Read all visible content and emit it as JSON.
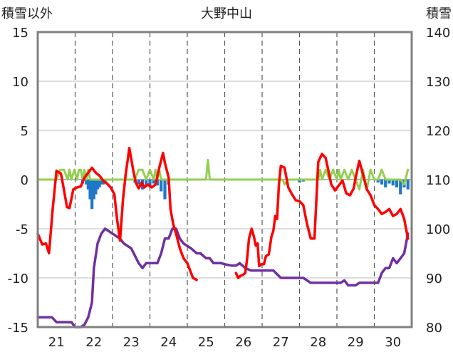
{
  "chart_data": {
    "type": "line",
    "title": "大野中山",
    "ylabel_left": "積雪以外",
    "ylabel_right": "積雪",
    "ylim_left": [
      -15,
      15
    ],
    "ylim_right": [
      80,
      140
    ],
    "yticks_left": [
      "15",
      "10",
      "5",
      "0",
      "-5",
      "-10",
      "-15"
    ],
    "yticks_right": [
      "140",
      "130",
      "120",
      "110",
      "100",
      "90",
      "80"
    ],
    "xlim": [
      20.5,
      30.5
    ],
    "day_labels": [
      "21",
      "22",
      "23",
      "24",
      "25",
      "26",
      "27",
      "28",
      "29",
      "30"
    ],
    "grid": true,
    "legend": "none",
    "colors": {
      "temperature": "#ff0000",
      "snow_depth": "#7030a0",
      "wind": "#92d050",
      "precip": "#1f77c8",
      "frame": "#808080"
    },
    "series": [
      {
        "axis": "left",
        "x": [
          20.5,
          20.62,
          20.72,
          20.8,
          20.9,
          21.0,
          21.12,
          21.2,
          21.28,
          21.35,
          21.45,
          21.55,
          21.65,
          21.75,
          21.85,
          21.95,
          22.05,
          22.15,
          22.25,
          22.35,
          22.45,
          22.55,
          22.62,
          22.7,
          22.78,
          22.85,
          22.95,
          23.05,
          23.12,
          23.2,
          23.28,
          23.35,
          23.45,
          23.55,
          23.65,
          23.75,
          23.85,
          23.9,
          24.0,
          24.05,
          24.12,
          24.2,
          24.3,
          24.4,
          24.5,
          24.6,
          24.65,
          24.75
        ],
        "y": [
          -5.5,
          -6.6,
          -6.5,
          -7.5,
          -3.0,
          0.9,
          0.6,
          -1.0,
          -2.8,
          -2.9,
          -1.0,
          -0.8,
          -0.7,
          0.2,
          0.7,
          1.2,
          0.7,
          0.4,
          -0.1,
          -0.4,
          -0.8,
          -1.5,
          -4.0,
          -6.2,
          -2.0,
          0.5,
          3.2,
          1.0,
          -0.3,
          -0.9,
          -0.3,
          -0.8,
          -0.5,
          -0.8,
          -0.5,
          1.2,
          2.7,
          1.7,
          0.2,
          -3.0,
          -4.5,
          -5.5,
          -7.0,
          -8.0,
          -8.5,
          -9.5,
          -10.0,
          -10.2
        ]
      },
      {
        "axis": "left",
        "x": [
          25.8,
          25.86,
          25.92,
          25.98,
          26.05,
          26.1,
          26.15,
          26.22,
          26.28,
          26.33,
          26.38,
          26.42,
          26.48,
          26.55,
          26.6,
          26.68,
          26.75,
          26.8,
          26.85,
          26.9,
          26.95,
          27.0,
          27.1,
          27.2,
          27.3,
          27.4,
          27.5,
          27.6,
          27.7,
          27.8,
          27.9,
          28.0,
          28.1,
          28.2,
          28.3,
          28.35,
          28.45,
          28.55,
          28.65,
          28.75,
          28.85,
          28.95,
          29.0,
          29.1,
          29.2,
          29.3,
          29.4,
          29.5,
          29.6,
          29.7,
          29.8,
          29.9,
          30.0,
          30.1,
          30.2,
          30.3,
          30.4
        ],
        "y": [
          -9.5,
          -10.0,
          -9.8,
          -9.7,
          -9.5,
          -8.0,
          -6.0,
          -5.0,
          -5.8,
          -6.7,
          -6.5,
          -8.8,
          -8.6,
          -8.6,
          -7.8,
          -7.6,
          -5.8,
          -5.2,
          -3.7,
          -4.0,
          -0.5,
          1.4,
          1.2,
          -0.8,
          -1.5,
          -2.1,
          -2.2,
          -2.6,
          -4.5,
          -6.0,
          -6.0,
          1.8,
          2.6,
          2.2,
          0.4,
          -0.5,
          -1.1,
          -0.6,
          -0.1,
          -1.4,
          -1.6,
          -0.9,
          0.2,
          1.9,
          0.5,
          -1.0,
          -1.6,
          -2.6,
          -3.0,
          -3.5,
          -3.3,
          -3.0,
          -3.7,
          -3.5,
          -3.0,
          -4.0,
          -6.0
        ]
      },
      {
        "axis": "right",
        "x": [
          20.5,
          20.8,
          20.88,
          21.0,
          21.15,
          21.3,
          21.4,
          21.5,
          21.65,
          21.75,
          21.85,
          21.95,
          22.0,
          22.1,
          22.2,
          22.3,
          22.4,
          22.5,
          22.6,
          22.7,
          22.8,
          23.0,
          23.2,
          23.3,
          23.4,
          23.5,
          23.6,
          23.7,
          23.8,
          23.9,
          24.0,
          24.1,
          24.2,
          24.3,
          24.4,
          24.6,
          24.75,
          24.85,
          25.0,
          25.1,
          25.2,
          25.3,
          25.4,
          25.55,
          25.7,
          25.8,
          25.9,
          26.05,
          26.2,
          26.4,
          26.6,
          26.8,
          27.0,
          27.2,
          27.4,
          27.6,
          27.8,
          28.0,
          28.2,
          28.3,
          28.4,
          28.5,
          28.6,
          28.7,
          28.8,
          28.9,
          29.0,
          29.1,
          29.2,
          29.3,
          29.4,
          29.6,
          29.7,
          29.8,
          29.9,
          30.0,
          30.1,
          30.2,
          30.3,
          30.4
        ],
        "y": [
          82,
          82,
          82,
          81,
          81,
          81,
          81,
          80,
          80,
          80.5,
          82,
          85,
          92,
          97,
          99,
          100,
          99.5,
          99,
          98.5,
          98,
          97,
          96,
          93,
          92,
          93,
          93,
          93,
          93,
          95,
          98,
          98,
          100,
          100,
          98,
          97,
          96,
          95,
          95,
          94,
          94,
          93,
          93,
          93,
          92.7,
          92.5,
          92.5,
          93,
          92,
          91.5,
          91.5,
          91.5,
          91.5,
          90,
          90,
          90,
          90,
          89,
          89,
          89,
          89,
          89,
          89,
          89,
          89.5,
          88.5,
          88.5,
          88.5,
          89,
          89,
          89,
          89,
          89,
          91,
          92,
          92,
          94,
          93,
          94,
          95,
          99
        ]
      }
    ],
    "wind": {
      "axis": "left",
      "x": [
        20.5,
        20.7,
        20.8,
        21.0,
        21.1,
        21.2,
        21.3,
        21.35,
        21.4,
        21.48,
        21.55,
        21.6,
        21.65,
        21.7,
        21.75,
        21.8,
        21.85,
        21.9,
        22.0,
        22.1,
        22.2,
        22.3,
        22.4,
        22.5,
        22.6,
        22.7,
        22.8,
        22.9,
        23.0,
        23.1,
        23.2,
        23.3,
        23.4,
        23.5,
        23.6,
        23.65,
        23.7,
        23.75,
        23.8,
        23.9,
        24.0,
        24.1,
        24.2,
        24.3,
        24.4,
        24.5,
        24.6,
        24.7,
        24.8,
        24.9,
        25.0,
        25.05,
        25.1,
        25.2,
        25.5,
        26.0,
        26.5,
        27.0,
        27.05,
        27.1,
        27.2,
        27.3,
        27.4,
        27.5,
        27.6,
        27.7,
        27.8,
        27.9,
        28.0,
        28.05,
        28.1,
        28.2,
        28.3,
        28.4,
        28.5,
        28.55,
        28.6,
        28.7,
        28.8,
        28.9,
        29.0,
        29.1,
        29.2,
        29.3,
        29.4,
        29.5,
        29.6,
        29.7,
        29.8,
        29.9,
        30.0,
        30.1,
        30.2,
        30.3,
        30.4
      ],
      "y": [
        0,
        0,
        0,
        0,
        1,
        1,
        0,
        1,
        0,
        1,
        0,
        1,
        1,
        0,
        1,
        0,
        1,
        0,
        0,
        0,
        0,
        0,
        0,
        0,
        0,
        0,
        0,
        0,
        0,
        0,
        1,
        1,
        0,
        1,
        0,
        1,
        0,
        1,
        0,
        0,
        0,
        0,
        0,
        0,
        0,
        0,
        0,
        0,
        0,
        0,
        0,
        2,
        0,
        0,
        0,
        0,
        0,
        0,
        0,
        -0.5,
        0,
        0,
        0,
        0,
        0,
        0,
        0,
        0,
        0,
        1,
        0,
        1,
        0,
        1,
        0,
        1,
        0,
        1,
        0,
        1,
        0,
        -1,
        1,
        -1,
        1,
        0,
        0,
        1,
        0,
        0,
        0,
        0,
        0,
        -0.5,
        1
      ]
    },
    "precip": {
      "axis": "left",
      "x": [
        21.7,
        21.8,
        21.85,
        21.9,
        21.95,
        22.0,
        22.05,
        22.1,
        22.15,
        22.2,
        22.25,
        22.3,
        23.1,
        23.2,
        23.3,
        23.4,
        23.5,
        23.6,
        23.7,
        23.8,
        23.9,
        24.0,
        27.5,
        27.6,
        29.6,
        29.7,
        29.8,
        29.9,
        30.0,
        30.1,
        30.2,
        30.3,
        30.4
      ],
      "y": [
        -0.4,
        -0.5,
        -1.0,
        -2.0,
        -3.0,
        -2.0,
        -1.5,
        -1.0,
        -0.8,
        -0.5,
        -0.5,
        -0.3,
        -0.3,
        -0.5,
        -1.0,
        -0.6,
        -0.8,
        -0.4,
        -0.6,
        -1.2,
        -2.0,
        -0.5,
        -0.3,
        -0.2,
        -0.3,
        -0.5,
        -0.8,
        -0.4,
        -0.6,
        -0.8,
        -1.5,
        -0.8,
        -1.0
      ]
    }
  }
}
